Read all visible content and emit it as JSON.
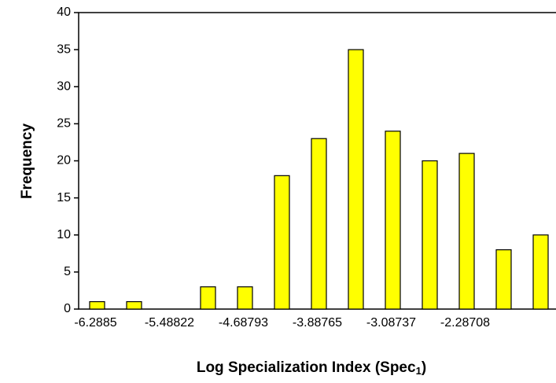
{
  "chart_data": {
    "type": "bar",
    "ylabel": "Frequency",
    "xlabel": [
      "Log Specialization Index (Spec",
      "1",
      ")"
    ],
    "categories": [
      "-6.2885",
      null,
      "-5.48822",
      null,
      "-4.68793",
      null,
      "-3.88765",
      null,
      "-3.08737",
      null,
      "-2.28708",
      null,
      null
    ],
    "values": [
      1,
      1,
      0,
      3,
      3,
      18,
      23,
      35,
      24,
      20,
      21,
      8,
      10
    ],
    "color": "#ffff00",
    "ylim": [
      0,
      40
    ],
    "yticks": [
      0,
      5,
      10,
      15,
      20,
      25,
      30,
      35,
      40
    ],
    "grid": false
  }
}
